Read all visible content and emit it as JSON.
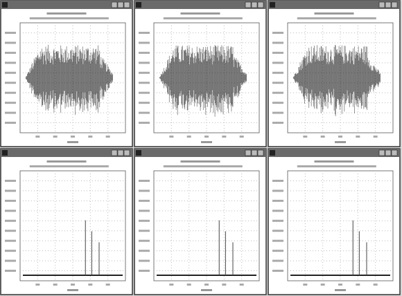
{
  "panels": [
    {
      "type": "waveform"
    },
    {
      "type": "waveform"
    },
    {
      "type": "waveform"
    },
    {
      "type": "spectrum"
    },
    {
      "type": "spectrum"
    },
    {
      "type": "spectrum"
    }
  ]
}
